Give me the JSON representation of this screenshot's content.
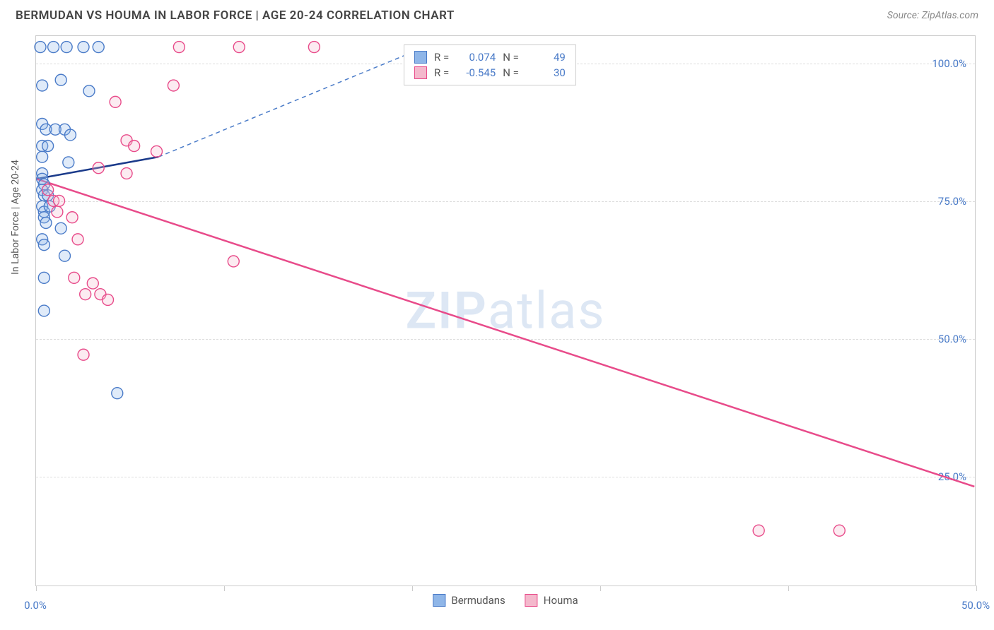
{
  "title": "BERMUDAN VS HOUMA IN LABOR FORCE | AGE 20-24 CORRELATION CHART",
  "source": "Source: ZipAtlas.com",
  "y_axis_label": "In Labor Force | Age 20-24",
  "watermark": {
    "bold": "ZIP",
    "rest": "atlas"
  },
  "chart": {
    "type": "scatter",
    "background_color": "#ffffff",
    "border_color": "#cccccc",
    "grid_color": "#dddddd",
    "xlim": [
      0,
      50
    ],
    "ylim": [
      5,
      105
    ],
    "x_ticks": [
      0,
      10,
      20,
      30,
      40,
      50
    ],
    "x_tick_labels": {
      "0": "0.0%",
      "50": "50.0%"
    },
    "y_ticks": [
      25,
      50,
      75,
      100
    ],
    "y_tick_labels": {
      "25": "25.0%",
      "50": "50.0%",
      "75": "75.0%",
      "100": "100.0%"
    },
    "marker_radius": 8,
    "marker_fill_opacity": 0.28,
    "marker_stroke_width": 1.4,
    "series": [
      {
        "name": "Bermudans",
        "color_fill": "#8fb6e8",
        "color_stroke": "#4a7bc8",
        "r_value": "0.074",
        "n_value": "49",
        "trend_solid": {
          "x1": 0,
          "y1": 79,
          "x2": 6.5,
          "y2": 83,
          "width": 2.5,
          "color": "#1a3a8a"
        },
        "trend_dashed": {
          "x1": 6.5,
          "y1": 83,
          "x2": 20,
          "y2": 102,
          "width": 1.5,
          "color": "#4a7bc8",
          "dash": "6,5"
        },
        "points": [
          [
            0.2,
            103
          ],
          [
            0.9,
            103
          ],
          [
            1.6,
            103
          ],
          [
            2.5,
            103
          ],
          [
            3.3,
            103
          ],
          [
            0.3,
            96
          ],
          [
            1.3,
            97
          ],
          [
            2.8,
            95
          ],
          [
            0.3,
            89
          ],
          [
            0.5,
            88
          ],
          [
            1.0,
            88
          ],
          [
            1.5,
            88
          ],
          [
            1.8,
            87
          ],
          [
            0.3,
            85
          ],
          [
            0.6,
            85
          ],
          [
            0.3,
            83
          ],
          [
            1.7,
            82
          ],
          [
            0.3,
            80
          ],
          [
            0.3,
            79
          ],
          [
            0.4,
            78
          ],
          [
            0.3,
            77
          ],
          [
            0.4,
            76
          ],
          [
            0.6,
            76
          ],
          [
            0.3,
            74
          ],
          [
            0.4,
            73
          ],
          [
            0.7,
            74
          ],
          [
            0.4,
            72
          ],
          [
            0.5,
            71
          ],
          [
            1.3,
            70
          ],
          [
            0.3,
            68
          ],
          [
            0.4,
            67
          ],
          [
            1.5,
            65
          ],
          [
            0.4,
            61
          ],
          [
            0.4,
            55
          ],
          [
            4.3,
            40
          ]
        ]
      },
      {
        "name": "Houma",
        "color_fill": "#f4b8cc",
        "color_stroke": "#e84b8a",
        "r_value": "-0.545",
        "n_value": "30",
        "trend_solid": {
          "x1": 0,
          "y1": 79,
          "x2": 50,
          "y2": 23,
          "width": 2.5,
          "color": "#e84b8a"
        },
        "points": [
          [
            7.6,
            103
          ],
          [
            10.8,
            103
          ],
          [
            14.8,
            103
          ],
          [
            7.3,
            96
          ],
          [
            4.2,
            93
          ],
          [
            4.8,
            86
          ],
          [
            5.2,
            85
          ],
          [
            6.4,
            84
          ],
          [
            3.3,
            81
          ],
          [
            4.8,
            80
          ],
          [
            0.9,
            75
          ],
          [
            1.2,
            75
          ],
          [
            1.1,
            73
          ],
          [
            1.9,
            72
          ],
          [
            0.6,
            77
          ],
          [
            2.2,
            68
          ],
          [
            10.5,
            64
          ],
          [
            2.0,
            61
          ],
          [
            3.0,
            60
          ],
          [
            2.6,
            58
          ],
          [
            3.4,
            58
          ],
          [
            3.8,
            57
          ],
          [
            2.5,
            47
          ],
          [
            38.5,
            15
          ],
          [
            42.8,
            15
          ]
        ]
      }
    ]
  },
  "stat_labels": {
    "r": "R =",
    "n": "N ="
  },
  "x_label_color": "#4a7bc8",
  "y_label_color": "#4a7bc8"
}
